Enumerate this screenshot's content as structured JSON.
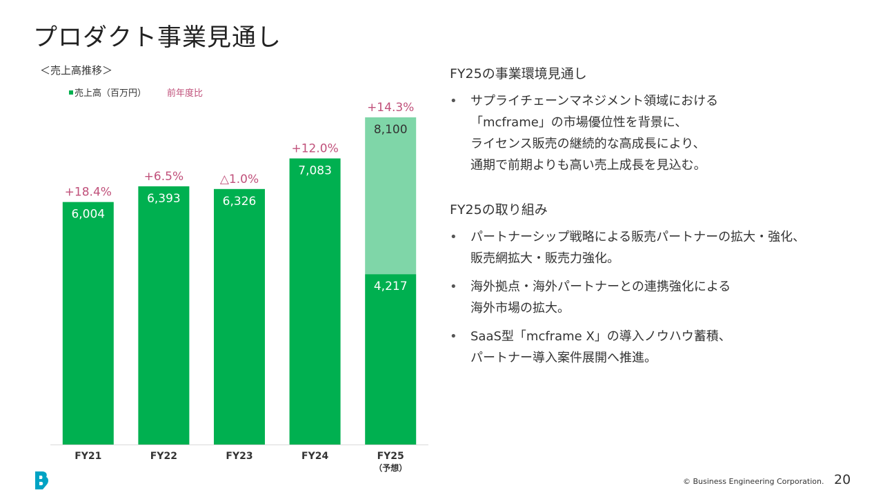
{
  "page": {
    "title": "プロダクト事業見通し",
    "page_number": "20",
    "copyright": "© Business Engineering Corporation."
  },
  "chart_data": {
    "type": "bar",
    "title": "＜売上高推移＞",
    "legend": {
      "sales": "売上高（百万円）",
      "yoy": "前年度比"
    },
    "categories": [
      "FY21",
      "FY22",
      "FY23",
      "FY24",
      "FY25"
    ],
    "category_sublabels": [
      "",
      "",
      "",
      "",
      "（予想）"
    ],
    "series": [
      {
        "name": "売上高（百万円）",
        "values": [
          6004,
          6393,
          6326,
          7083,
          8100
        ],
        "value_labels": [
          "6,004",
          "6,393",
          "6,326",
          "7,083",
          "8,100"
        ]
      }
    ],
    "fy25_actual": {
      "value": 4217,
      "label": "4,217"
    },
    "yoy_labels": [
      "+18.4%",
      "+6.5%",
      "△1.0%",
      "+12.0%",
      "+14.3%"
    ],
    "ylim": [
      0,
      8100
    ],
    "colors": {
      "bar": "#00b050",
      "forecast": "#7fd6a8",
      "yoy": "#c0507a",
      "value_label": "#ffffff",
      "forecast_label": "#333333"
    }
  },
  "right": {
    "section1_heading": "FY25の事業環境見通し",
    "section1_items": [
      [
        "サプライチェーンマネジメント領域における",
        "「mcframe」の市場優位性を背景に、",
        "ライセンス販売の継続的な高成長により、",
        "通期で前期よりも高い売上成長を見込む。"
      ]
    ],
    "section2_heading": "FY25の取り組み",
    "section2_items": [
      [
        "パートナーシップ戦略による販売パートナーの拡大・強化、",
        "販売網拡大・販売力強化。"
      ],
      [
        "海外拠点・海外パートナーとの連携強化による",
        "海外市場の拡大。"
      ],
      [
        "SaaS型「mcframe X」の導入ノウハウ蓄積、",
        "パートナー導入案件展開へ推進。"
      ]
    ],
    "bullet_glyph": "•"
  },
  "logo": {
    "icon": "b-logo-icon",
    "color": "#00a3c4"
  }
}
